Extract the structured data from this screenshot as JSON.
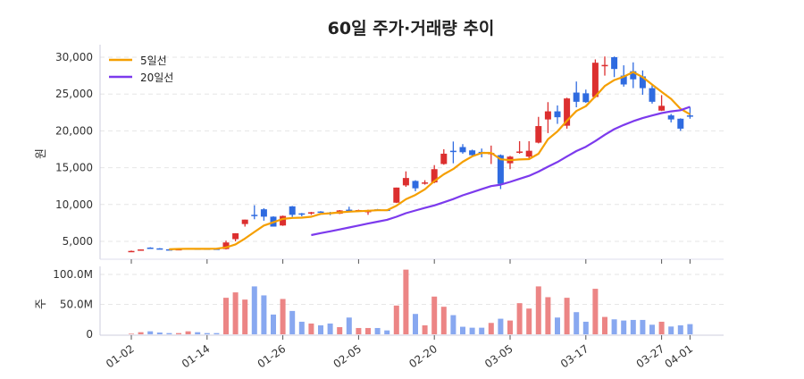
{
  "chart_data": {
    "type": "candlestick",
    "title": "60일 주가·거래량 추이",
    "price_axis": {
      "label": "원",
      "ticks": [
        "5,000",
        "10,000",
        "15,000",
        "20,000",
        "25,000",
        "30,000"
      ],
      "tick_values": [
        5000,
        10000,
        15000,
        20000,
        25000,
        30000
      ]
    },
    "volume_axis": {
      "label": "주",
      "ticks": [
        "0",
        "50.0M",
        "100.0M"
      ],
      "tick_values": [
        0,
        50,
        100
      ],
      "unit": "M"
    },
    "x_ticks": [
      {
        "index": 0,
        "label": "01-02"
      },
      {
        "index": 8,
        "label": "01-14"
      },
      {
        "index": 16,
        "label": "01-26"
      },
      {
        "index": 24,
        "label": "02-05"
      },
      {
        "index": 32,
        "label": "02-20"
      },
      {
        "index": 40,
        "label": "03-05"
      },
      {
        "index": 48,
        "label": "03-17"
      },
      {
        "index": 56,
        "label": "03-27"
      },
      {
        "index": 59,
        "label": "04-01"
      }
    ],
    "legend": {
      "placement": "top-left",
      "items": [
        {
          "name": "5일선",
          "color": "#f59f00",
          "window": 5
        },
        {
          "name": "20일선",
          "color": "#7c3aed",
          "window": 20
        }
      ]
    },
    "grid": true,
    "colors": {
      "up": "#dc2f2f",
      "down": "#2f6be0",
      "up_volume": "#ec8585",
      "down_volume": "#88a8f0"
    },
    "ohlcv": [
      [
        3700,
        3750,
        3650,
        3700,
        1
      ],
      [
        3800,
        3900,
        3780,
        3900,
        3.5
      ],
      [
        4150,
        4200,
        4050,
        4100,
        5
      ],
      [
        4050,
        4080,
        3950,
        4000,
        3
      ],
      [
        3920,
        3950,
        3850,
        3880,
        2
      ],
      [
        3930,
        3980,
        3900,
        3950,
        2
      ],
      [
        4000,
        4080,
        3980,
        4050,
        5
      ],
      [
        4020,
        4050,
        3970,
        4000,
        3.5
      ],
      [
        4020,
        4040,
        3980,
        4000,
        2
      ],
      [
        4010,
        4030,
        3980,
        4000,
        2
      ],
      [
        3950,
        5100,
        3900,
        4850,
        61
      ],
      [
        5300,
        6100,
        5000,
        6100,
        70
      ],
      [
        7350,
        7950,
        7000,
        7950,
        58
      ],
      [
        8600,
        9900,
        8000,
        8500,
        80
      ],
      [
        9350,
        9500,
        7800,
        8350,
        65
      ],
      [
        8350,
        8400,
        7000,
        7000,
        33
      ],
      [
        7150,
        8500,
        7100,
        8450,
        59
      ],
      [
        9750,
        9800,
        8300,
        8600,
        39
      ],
      [
        8800,
        8850,
        8400,
        8700,
        21
      ],
      [
        8850,
        9000,
        8600,
        8950,
        18
      ],
      [
        9050,
        9100,
        8900,
        8950,
        15
      ],
      [
        8900,
        9000,
        8550,
        8850,
        18
      ],
      [
        8750,
        9250,
        8700,
        9200,
        12
      ],
      [
        9300,
        9700,
        9100,
        9200,
        28
      ],
      [
        9050,
        9300,
        9000,
        9250,
        10.5
      ],
      [
        8950,
        9300,
        8600,
        9250,
        10.5
      ],
      [
        9350,
        9400,
        9150,
        9200,
        10.5
      ],
      [
        9300,
        9350,
        9150,
        9200,
        6.5
      ],
      [
        10250,
        12300,
        10200,
        12300,
        48
      ],
      [
        12600,
        14500,
        12400,
        13600,
        108
      ],
      [
        13200,
        13300,
        11800,
        12200,
        34
      ],
      [
        12850,
        13300,
        12700,
        13000,
        15
      ],
      [
        13000,
        15350,
        12900,
        14800,
        63
      ],
      [
        15500,
        17500,
        15400,
        16900,
        46
      ],
      [
        17300,
        18550,
        15600,
        17200,
        32
      ],
      [
        17800,
        18200,
        16900,
        17100,
        12.6
      ],
      [
        17350,
        17450,
        16500,
        16700,
        11
      ],
      [
        17150,
        17600,
        16400,
        17100,
        11
      ],
      [
        16900,
        18000,
        15500,
        17000,
        19
      ],
      [
        16700,
        16800,
        12100,
        12800,
        26
      ],
      [
        15600,
        16600,
        14800,
        16500,
        23
      ],
      [
        17100,
        18600,
        16900,
        17200,
        52
      ],
      [
        16500,
        18600,
        16200,
        17300,
        43
      ],
      [
        18400,
        21900,
        18300,
        20650,
        80
      ],
      [
        21550,
        23900,
        19700,
        22650,
        62
      ],
      [
        22650,
        23450,
        20950,
        21850,
        28
      ],
      [
        20700,
        24500,
        20300,
        24400,
        61
      ],
      [
        25200,
        26700,
        23200,
        23950,
        37
      ],
      [
        25100,
        25600,
        23800,
        23900,
        21
      ],
      [
        24600,
        29700,
        24500,
        29250,
        76
      ],
      [
        28800,
        30100,
        27500,
        28950,
        29
      ],
      [
        30000,
        30100,
        27300,
        28400,
        25
      ],
      [
        27500,
        28900,
        26000,
        26300,
        23
      ],
      [
        28100,
        29300,
        25800,
        27000,
        24
      ],
      [
        27400,
        28200,
        24900,
        25800,
        24
      ],
      [
        25800,
        26200,
        23700,
        23950,
        16
      ],
      [
        22750,
        24850,
        22700,
        23400,
        21
      ],
      [
        22100,
        22300,
        21150,
        21550,
        13
      ],
      [
        21650,
        21700,
        20000,
        20300,
        15
      ],
      [
        22100,
        23250,
        21650,
        22000,
        17
      ]
    ],
    "ohlcv_fields": [
      "open",
      "high",
      "low",
      "close",
      "volume_M"
    ]
  }
}
